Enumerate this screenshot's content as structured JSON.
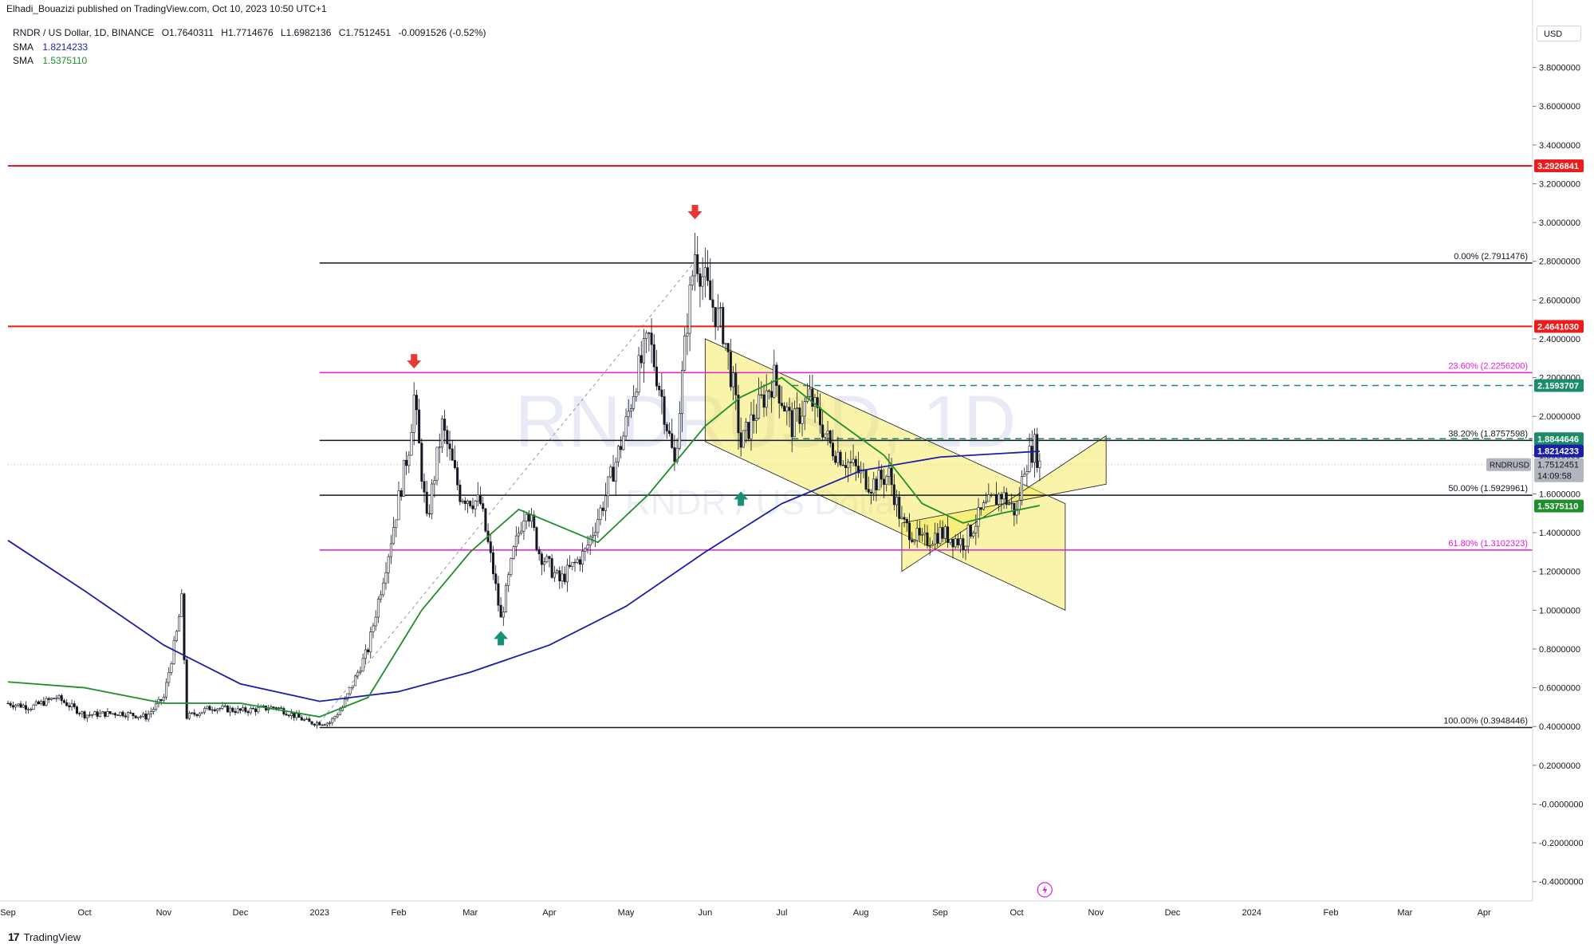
{
  "header": {
    "published": "Elhadi_Bouazizi published on TradingView.com, Oct 10, 2023 10:50 UTC+1",
    "symbol": "RNDR / US Dollar, 1D, BINANCE",
    "open": "O1.7640311",
    "high": "H1.7714676",
    "low": "L1.6982136",
    "close": "C1.7512451",
    "change": "-0.0091526 (-0.52%)",
    "indicators": [
      {
        "name": "SMA",
        "value": "1.8214233",
        "color": "#1b1fa6"
      },
      {
        "name": "SMA",
        "value": "1.5375110",
        "color": "#1f8f2c"
      }
    ]
  },
  "watermark": {
    "symbol": "RNDRUSD, 1D",
    "name": "RNDR / US Dollar"
  },
  "currency": "USD",
  "footer": {
    "brand": "TradingView"
  },
  "colors": {
    "up": "#131722",
    "down": "#131722",
    "sma_slow": "#1b1fa6",
    "sma_fast": "#1f8f2c",
    "resistance": "#ef1b1b",
    "fib_magenta": "#e81ad6",
    "fib_black": "#131722",
    "channel": "#f5e642",
    "target_dash": "#1a8c6a",
    "arrow_red": "#e53935",
    "arrow_green": "#1a9076"
  },
  "chart_data": {
    "type": "candlestick",
    "ylim": [
      -0.5,
      4.0
    ],
    "y_ticks": [
      "3.8000000",
      "3.6000000",
      "3.4000000",
      "3.2000000",
      "3.0000000",
      "2.8000000",
      "2.6000000",
      "2.4000000",
      "2.2000000",
      "2.0000000",
      "1.8000000",
      "1.6000000",
      "1.4000000",
      "1.2000000",
      "1.0000000",
      "0.8000000",
      "0.6000000",
      "0.4000000",
      "0.2000000",
      "-0.0000000",
      "-0.2000000",
      "-0.4000000"
    ],
    "x_ticks": [
      "Sep",
      "Oct",
      "Nov",
      "Dec",
      "2023",
      "Feb",
      "Mar",
      "Apr",
      "May",
      "Jun",
      "Jul",
      "Aug",
      "Sep",
      "Oct",
      "Nov",
      "Dec",
      "2024",
      "Feb",
      "Mar",
      "Apr"
    ],
    "x_start": "2022-09-01",
    "x_end": "2024-04-20",
    "fib_levels": [
      {
        "label": "0.00% (2.7911476)",
        "value": 2.7911476,
        "color": "black"
      },
      {
        "label": "23.60% (2.2256200)",
        "value": 2.22562,
        "color": "magenta"
      },
      {
        "label": "38.20% (1.8757598)",
        "value": 1.8757598,
        "color": "black"
      },
      {
        "label": "50.00% (1.5929961)",
        "value": 1.5929961,
        "color": "black"
      },
      {
        "label": "61.80% (1.3102323)",
        "value": 1.3102323,
        "color": "magenta"
      },
      {
        "label": "100.00% (0.3948446)",
        "value": 0.3948446,
        "color": "black"
      }
    ],
    "horizontal_lines": [
      {
        "value": 3.2926841,
        "label": "3.2926841",
        "color": "red"
      },
      {
        "value": 2.464103,
        "label": "2.4641030",
        "color": "red"
      }
    ],
    "dashed_lines": [
      {
        "value": 2.1593707,
        "label": "2.1593707"
      },
      {
        "value": 1.8844646,
        "label": "1.8844646"
      }
    ],
    "price_tags": [
      {
        "value": 1.8214233,
        "label": "1.8214233",
        "color": "#1b1fa6"
      },
      {
        "value": 1.537511,
        "label": "1.5375110",
        "color": "#1f8f2c"
      }
    ],
    "last_price": {
      "value": 1.7512451,
      "label": "1.7512451",
      "countdown": "14:09:58",
      "symbol": "RNDRUSD"
    },
    "series": {
      "price_path": [
        [
          "2022-09-01",
          0.52
        ],
        [
          "2022-09-10",
          0.5
        ],
        [
          "2022-09-20",
          0.55
        ],
        [
          "2022-10-01",
          0.46
        ],
        [
          "2022-10-15",
          0.47
        ],
        [
          "2022-10-25",
          0.45
        ],
        [
          "2022-11-01",
          0.55
        ],
        [
          "2022-11-06",
          0.88
        ],
        [
          "2022-11-08",
          1.05
        ],
        [
          "2022-11-10",
          0.45
        ],
        [
          "2022-11-20",
          0.5
        ],
        [
          "2022-12-01",
          0.48
        ],
        [
          "2022-12-15",
          0.5
        ],
        [
          "2022-12-28",
          0.42
        ],
        [
          "2023-01-05",
          0.42
        ],
        [
          "2023-01-10",
          0.5
        ],
        [
          "2023-01-20",
          0.8
        ],
        [
          "2023-01-28",
          1.3
        ],
        [
          "2023-02-05",
          1.85
        ],
        [
          "2023-02-07",
          2.1
        ],
        [
          "2023-02-12",
          1.45
        ],
        [
          "2023-02-18",
          1.95
        ],
        [
          "2023-02-25",
          1.6
        ],
        [
          "2023-03-05",
          1.55
        ],
        [
          "2023-03-10",
          1.2
        ],
        [
          "2023-03-13",
          0.95
        ],
        [
          "2023-03-18",
          1.3
        ],
        [
          "2023-03-23",
          1.55
        ],
        [
          "2023-03-28",
          1.3
        ],
        [
          "2023-04-05",
          1.15
        ],
        [
          "2023-04-15",
          1.3
        ],
        [
          "2023-04-22",
          1.55
        ],
        [
          "2023-04-30",
          1.9
        ],
        [
          "2023-05-05",
          2.2
        ],
        [
          "2023-05-10",
          2.4
        ],
        [
          "2023-05-15",
          2.1
        ],
        [
          "2023-05-20",
          1.75
        ],
        [
          "2023-05-25",
          2.5
        ],
        [
          "2023-05-28",
          2.85
        ],
        [
          "2023-06-03",
          2.6
        ],
        [
          "2023-06-08",
          2.45
        ],
        [
          "2023-06-12",
          2.15
        ],
        [
          "2023-06-15",
          1.85
        ],
        [
          "2023-06-20",
          2.0
        ],
        [
          "2023-06-28",
          2.2
        ],
        [
          "2023-07-05",
          1.95
        ],
        [
          "2023-07-12",
          2.1
        ],
        [
          "2023-07-20",
          1.85
        ],
        [
          "2023-07-28",
          1.75
        ],
        [
          "2023-08-05",
          1.65
        ],
        [
          "2023-08-12",
          1.7
        ],
        [
          "2023-08-17",
          1.45
        ],
        [
          "2023-08-25",
          1.35
        ],
        [
          "2023-09-01",
          1.4
        ],
        [
          "2023-09-10",
          1.35
        ],
        [
          "2023-09-18",
          1.52
        ],
        [
          "2023-09-25",
          1.6
        ],
        [
          "2023-10-01",
          1.5
        ],
        [
          "2023-10-04",
          1.75
        ],
        [
          "2023-10-08",
          1.85
        ],
        [
          "2023-10-10",
          1.75
        ]
      ],
      "sma_slow": [
        [
          "2022-09-01",
          1.36
        ],
        [
          "2022-10-01",
          1.1
        ],
        [
          "2022-11-01",
          0.82
        ],
        [
          "2022-12-01",
          0.62
        ],
        [
          "2023-01-01",
          0.53
        ],
        [
          "2023-02-01",
          0.58
        ],
        [
          "2023-03-01",
          0.68
        ],
        [
          "2023-04-01",
          0.82
        ],
        [
          "2023-05-01",
          1.02
        ],
        [
          "2023-06-01",
          1.3
        ],
        [
          "2023-07-01",
          1.55
        ],
        [
          "2023-08-01",
          1.72
        ],
        [
          "2023-09-01",
          1.79
        ],
        [
          "2023-10-10",
          1.82
        ]
      ],
      "sma_fast": [
        [
          "2022-09-01",
          0.63
        ],
        [
          "2022-10-01",
          0.6
        ],
        [
          "2022-11-01",
          0.52
        ],
        [
          "2022-12-01",
          0.52
        ],
        [
          "2023-01-01",
          0.45
        ],
        [
          "2023-01-20",
          0.55
        ],
        [
          "2023-02-10",
          1.0
        ],
        [
          "2023-03-01",
          1.3
        ],
        [
          "2023-03-20",
          1.52
        ],
        [
          "2023-04-20",
          1.35
        ],
        [
          "2023-05-10",
          1.6
        ],
        [
          "2023-06-01",
          1.95
        ],
        [
          "2023-06-15",
          2.1
        ],
        [
          "2023-07-01",
          2.2
        ],
        [
          "2023-07-20",
          2.0
        ],
        [
          "2023-08-10",
          1.8
        ],
        [
          "2023-08-25",
          1.55
        ],
        [
          "2023-09-10",
          1.45
        ],
        [
          "2023-09-25",
          1.5
        ],
        [
          "2023-10-10",
          1.54
        ]
      ]
    },
    "channels": [
      {
        "p1": [
          "2023-06-01",
          2.4
        ],
        "p2": [
          "2023-10-20",
          1.55
        ],
        "p3": [
          "2023-06-01",
          1.87
        ],
        "p4": [
          "2023-10-20",
          1.0
        ]
      },
      {
        "p1": [
          "2023-08-17",
          1.2
        ],
        "p2": [
          "2023-11-05",
          1.9
        ],
        "p3": [
          "2023-08-17",
          1.45
        ],
        "p4": [
          "2023-11-05",
          1.65
        ]
      }
    ],
    "trend_line": [
      [
        "2023-01-01",
        0.42
      ],
      [
        "2023-05-28",
        2.8
      ]
    ],
    "arrows": [
      {
        "date": "2023-02-07",
        "price": 2.28,
        "dir": "down"
      },
      {
        "date": "2023-05-28",
        "price": 3.05,
        "dir": "down"
      },
      {
        "date": "2023-03-13",
        "price": 0.86,
        "dir": "up"
      },
      {
        "date": "2023-06-15",
        "price": 1.58,
        "dir": "up"
      }
    ]
  }
}
